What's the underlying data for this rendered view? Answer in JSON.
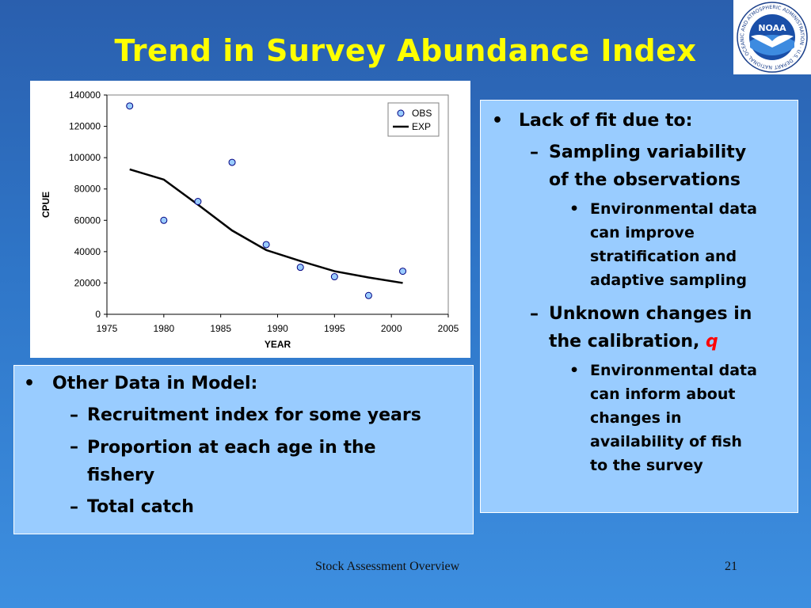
{
  "slide": {
    "title": "Trend in Survey Abundance Index",
    "footer_text": "Stock Assessment Overview",
    "page_number": "21"
  },
  "logo": {
    "text": "NOAA",
    "ring_text": "NATIONAL OCEANIC AND ATMOSPHERIC ADMINISTRATION · U.S. DEPARTMENT OF COMMERCE"
  },
  "right_panel": {
    "bullet": "Lack of fit due to:",
    "items": [
      {
        "text": "Sampling variability of the observations",
        "lines": [
          "Sampling variability",
          "of the observations"
        ],
        "sub": {
          "lines": [
            "Environmental data",
            "can improve",
            "stratification and",
            "adaptive sampling"
          ]
        }
      },
      {
        "text": "Unknown changes in the calibration, q",
        "lines": [
          "Unknown changes in",
          "the calibration, "
        ],
        "q": "q",
        "sub": {
          "lines": [
            "Environmental data",
            "can inform about",
            "changes in",
            "availability of fish",
            "to the survey"
          ]
        }
      }
    ]
  },
  "left_panel": {
    "bullet": "Other Data in Model:",
    "items": [
      {
        "lines": [
          "Recruitment index for some years"
        ]
      },
      {
        "lines": [
          "Proportion at each age in the",
          "fishery"
        ]
      },
      {
        "lines": [
          "Total catch"
        ]
      }
    ]
  },
  "colors": {
    "title": "#ffff00",
    "panel": "#99ccff",
    "marker_fill": "#99ccff",
    "marker_stroke": "#000080",
    "q": "#ff0000"
  },
  "chart_data": {
    "type": "scatter",
    "xlabel": "YEAR",
    "ylabel": "CPUE",
    "xlim": [
      1975,
      2005
    ],
    "ylim": [
      0,
      140000
    ],
    "xticks": [
      1975,
      1980,
      1985,
      1990,
      1995,
      2000,
      2005
    ],
    "yticks": [
      0,
      20000,
      40000,
      60000,
      80000,
      100000,
      120000,
      140000
    ],
    "grid": false,
    "legend": "top-right",
    "series": [
      {
        "name": "OBS",
        "kind": "scatter",
        "x": [
          1977,
          1980,
          1983,
          1986,
          1989,
          1992,
          1995,
          1998,
          2001
        ],
        "y": [
          133000,
          60000,
          72000,
          97000,
          44500,
          30000,
          24000,
          12000,
          27500
        ]
      },
      {
        "name": "EXP",
        "kind": "line",
        "x": [
          1977,
          1980,
          1983,
          1986,
          1989,
          1992,
          1995,
          1998,
          2001
        ],
        "y": [
          92500,
          86000,
          70000,
          53500,
          41000,
          34000,
          27500,
          23500,
          20000
        ]
      }
    ]
  }
}
